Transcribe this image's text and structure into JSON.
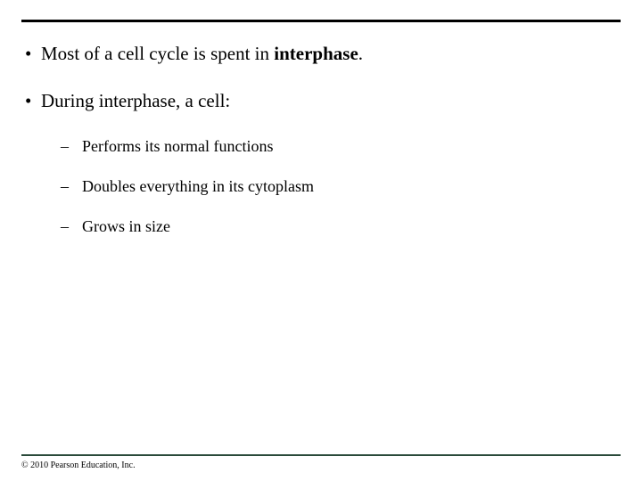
{
  "bullets": {
    "b1_pre": "Most of a cell cycle is spent in ",
    "b1_bold": "interphase",
    "b1_post": ".",
    "b2": "During interphase, a cell:",
    "sub1": "Performs its normal functions",
    "sub2": "Doubles everything in its cytoplasm",
    "sub3": "Grows in size"
  },
  "copyright": "© 2010 Pearson Education, Inc.",
  "colors": {
    "top_rule": "#000000",
    "bottom_rule": "#2a4a3a",
    "text": "#000000",
    "background": "#ffffff"
  },
  "typography": {
    "body_font": "Times New Roman",
    "l1_fontsize": 21,
    "l2_fontsize": 18,
    "copyright_fontsize": 10
  }
}
